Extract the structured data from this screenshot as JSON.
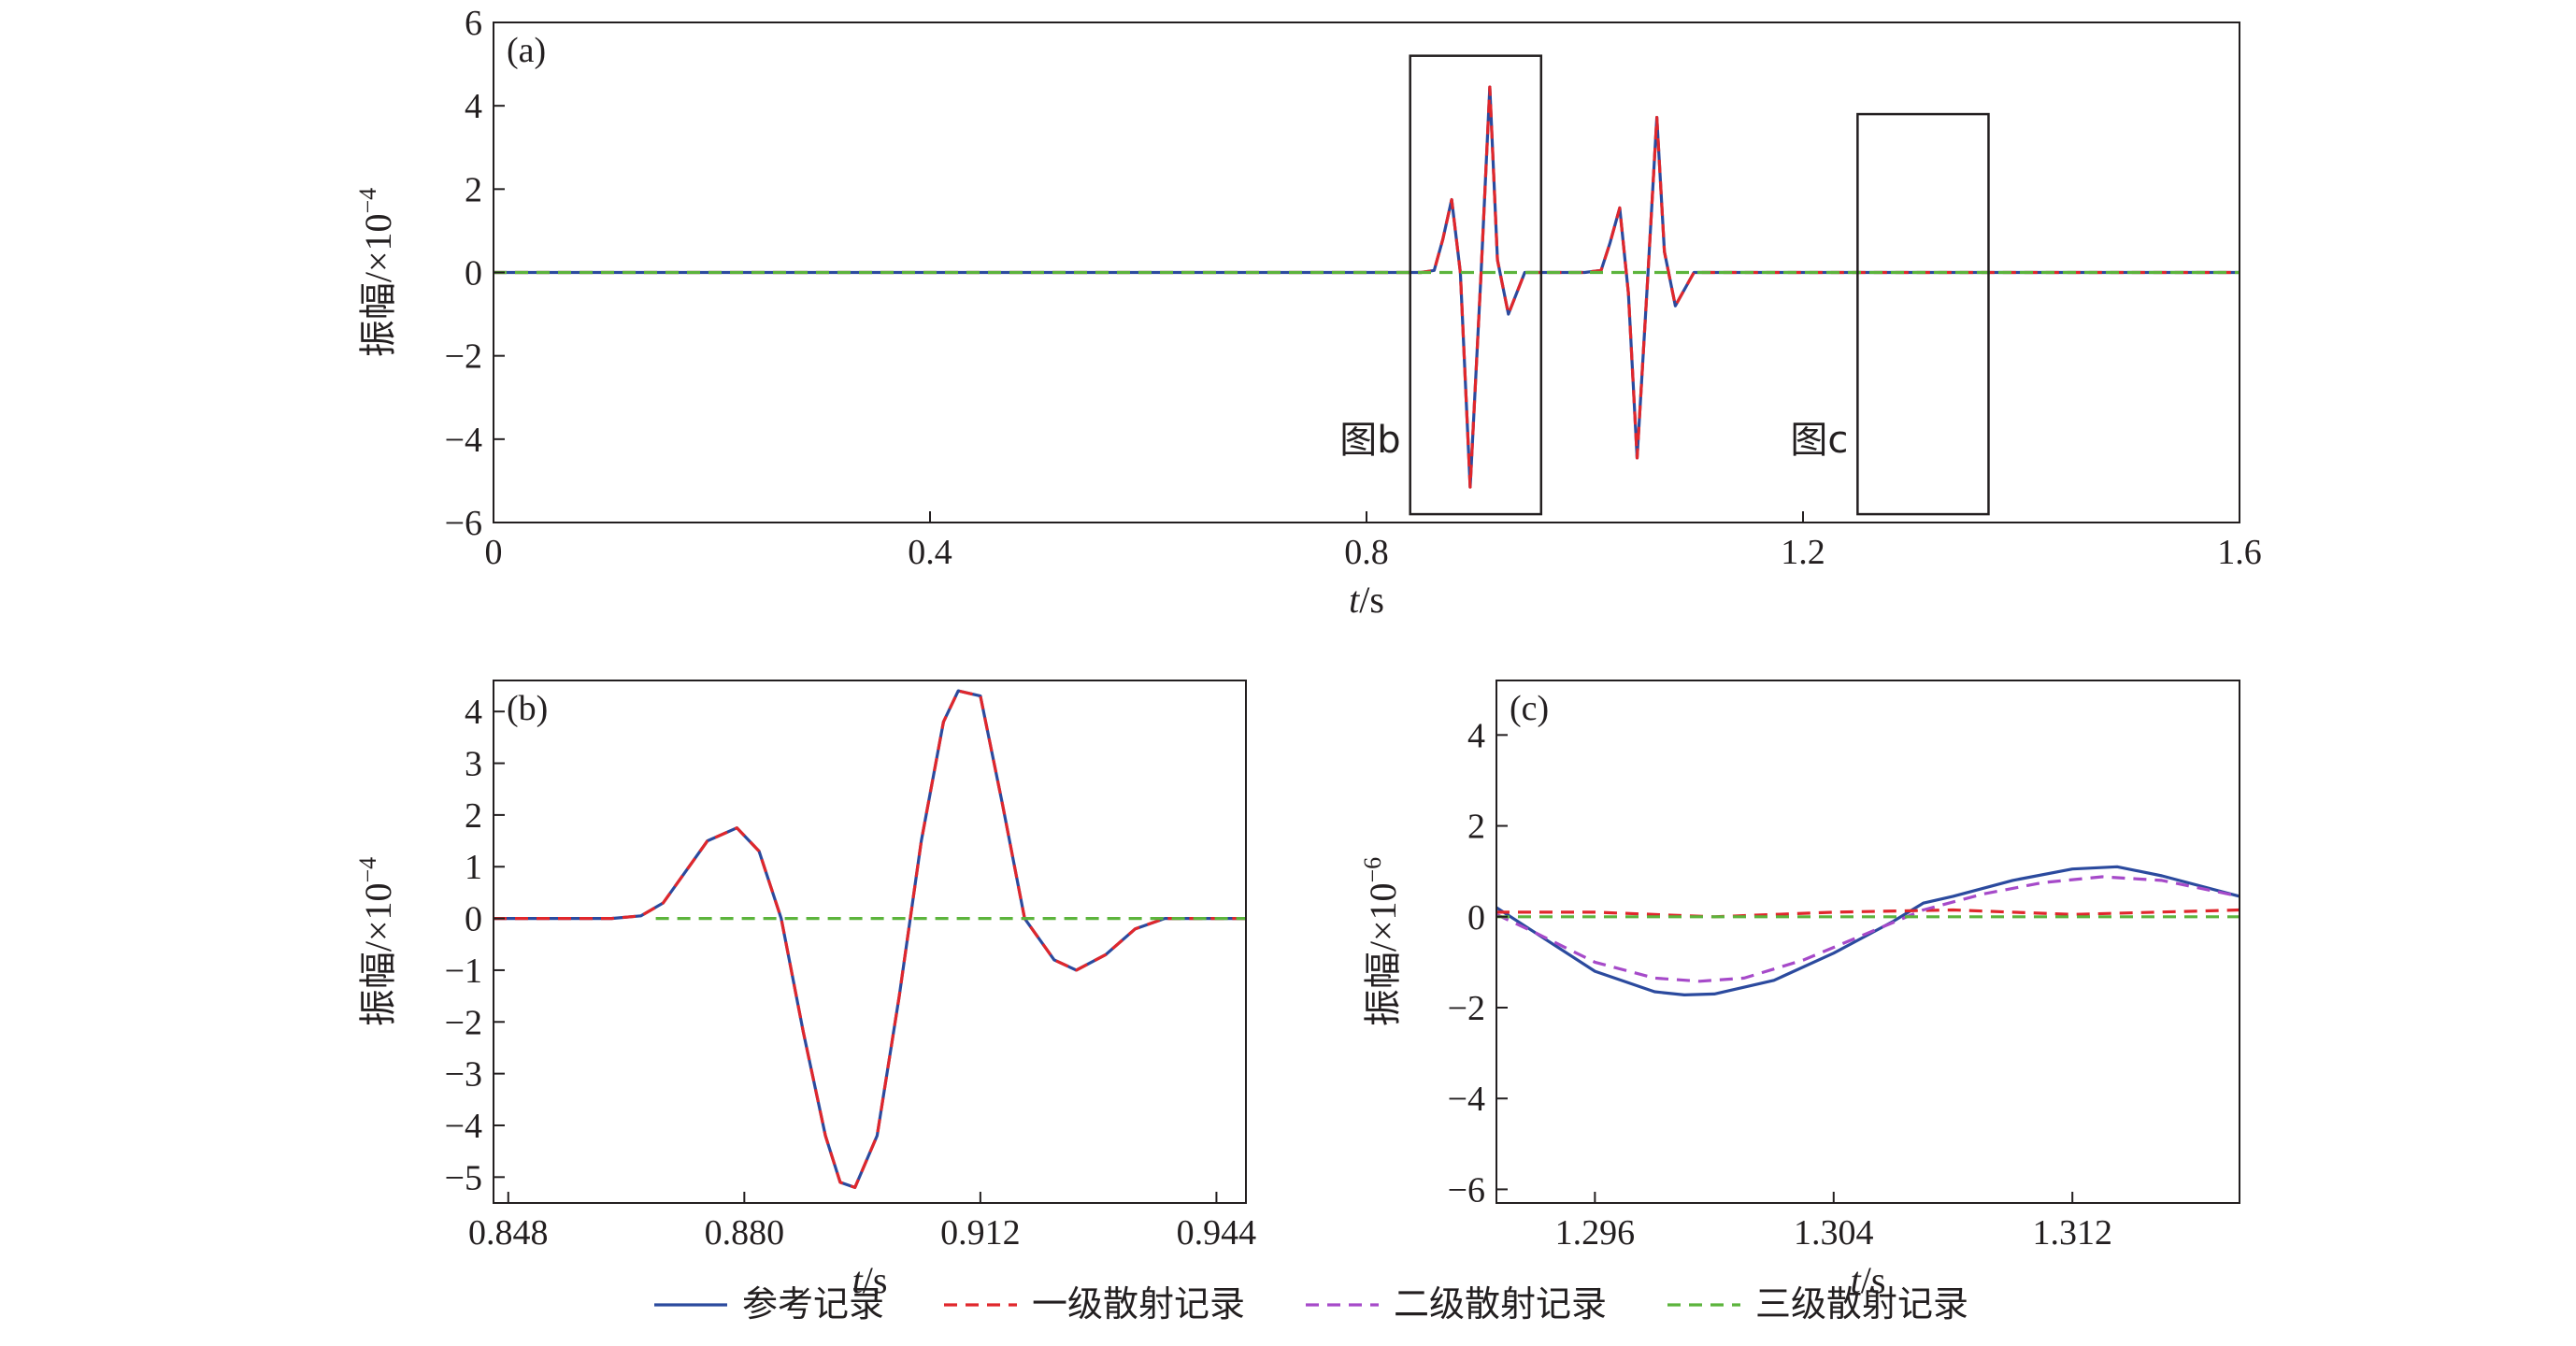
{
  "colors": {
    "reference": "#2b4a9e",
    "first_order": "#e0272c",
    "second_order": "#a64ac9",
    "third_order": "#5cb43c",
    "axis": "#231f20"
  },
  "legend": [
    {
      "label": "参考记录",
      "color": "#2b4a9e",
      "dash": "solid"
    },
    {
      "label": "一级散射记录",
      "color": "#e0272c",
      "dash": "dashed"
    },
    {
      "label": "二级散射记录",
      "color": "#a64ac9",
      "dash": "dashed"
    },
    {
      "label": "三级散射记录",
      "color": "#5cb43c",
      "dash": "dashed"
    }
  ],
  "chart_data": [
    {
      "panel": "(a)",
      "type": "line",
      "xlabel_italic": "t",
      "xlabel_unit": "/s",
      "ylabel": "振幅/×10",
      "ylabel_exp": "−4",
      "xlim": [
        0,
        1.6
      ],
      "ylim": [
        -6,
        6
      ],
      "xticks": [
        0,
        0.4,
        0.8,
        1.2,
        1.6
      ],
      "xtick_labels": [
        "0",
        "0.4",
        "0.8",
        "1.2",
        "1.6"
      ],
      "yticks": [
        -6,
        -4,
        -2,
        0,
        2,
        4,
        6
      ],
      "ytick_labels": [
        "−6",
        "−4",
        "−2",
        "0",
        "2",
        "4",
        "6"
      ],
      "grid": false,
      "series": [
        {
          "name": "参考记录",
          "x": [
            0,
            0.85,
            0.862,
            0.87,
            0.878,
            0.886,
            0.895,
            0.905,
            0.913,
            0.92,
            0.93,
            0.945,
            1.0,
            1.015,
            1.023,
            1.032,
            1.04,
            1.048,
            1.058,
            1.066,
            1.073,
            1.083,
            1.1,
            1.6
          ],
          "y": [
            0,
            0,
            0.05,
            0.8,
            1.75,
            0,
            -5.15,
            0,
            4.45,
            0.3,
            -1.0,
            0,
            0,
            0.05,
            0.7,
            1.55,
            -0.5,
            -4.45,
            0,
            3.72,
            0.5,
            -0.8,
            0,
            0
          ]
        },
        {
          "name": "一级散射记录",
          "x": [
            0,
            0.85,
            0.862,
            0.87,
            0.878,
            0.886,
            0.895,
            0.905,
            0.913,
            0.92,
            0.93,
            0.945,
            1.0,
            1.015,
            1.023,
            1.032,
            1.04,
            1.048,
            1.058,
            1.066,
            1.073,
            1.083,
            1.1,
            1.6
          ],
          "y": [
            0,
            0,
            0.05,
            0.8,
            1.75,
            0,
            -5.15,
            0,
            4.45,
            0.3,
            -1.0,
            0,
            0,
            0.05,
            0.7,
            1.55,
            -0.5,
            -4.45,
            0,
            3.72,
            0.5,
            -0.8,
            0,
            0
          ]
        },
        {
          "name": "三级散射记录",
          "x": [
            0,
            1.6
          ],
          "y": [
            0,
            0
          ]
        }
      ],
      "annotations": [
        {
          "label": "图b",
          "box_x": [
            0.84,
            0.96
          ],
          "box_y": [
            -5.8,
            5.2
          ]
        },
        {
          "label": "图c",
          "box_x": [
            1.25,
            1.37
          ],
          "box_y": [
            -5.8,
            3.8
          ]
        }
      ]
    },
    {
      "panel": "(b)",
      "type": "line",
      "xlabel_italic": "t",
      "xlabel_unit": "/s",
      "ylabel": "振幅/×10",
      "ylabel_exp": "−4",
      "xlim": [
        0.846,
        0.948
      ],
      "ylim": [
        -5.5,
        4.6
      ],
      "xticks": [
        0.848,
        0.88,
        0.912,
        0.944
      ],
      "xtick_labels": [
        "0.848",
        "0.880",
        "0.912",
        "0.944"
      ],
      "yticks": [
        -5,
        -4,
        -3,
        -2,
        -1,
        0,
        1,
        2,
        3,
        4
      ],
      "ytick_labels": [
        "−5",
        "−4",
        "−3",
        "−2",
        "−1",
        "0",
        "1",
        "2",
        "3",
        "4"
      ],
      "grid": false,
      "series": [
        {
          "name": "参考记录",
          "x": [
            0.846,
            0.862,
            0.866,
            0.869,
            0.872,
            0.875,
            0.879,
            0.882,
            0.885,
            0.888,
            0.891,
            0.893,
            0.895,
            0.898,
            0.901,
            0.904,
            0.907,
            0.909,
            0.912,
            0.915,
            0.918,
            0.922,
            0.925,
            0.929,
            0.933,
            0.937,
            0.948
          ],
          "y": [
            0,
            0,
            0.05,
            0.3,
            0.9,
            1.5,
            1.75,
            1.3,
            0,
            -2.2,
            -4.2,
            -5.1,
            -5.2,
            -4.2,
            -1.5,
            1.5,
            3.8,
            4.4,
            4.3,
            2.2,
            0,
            -0.8,
            -1.0,
            -0.7,
            -0.2,
            0,
            0
          ]
        },
        {
          "name": "一级散射记录",
          "x": [
            0.846,
            0.862,
            0.866,
            0.869,
            0.872,
            0.875,
            0.879,
            0.882,
            0.885,
            0.888,
            0.891,
            0.893,
            0.895,
            0.898,
            0.901,
            0.904,
            0.907,
            0.909,
            0.912,
            0.915,
            0.918,
            0.922,
            0.925,
            0.929,
            0.933,
            0.937,
            0.948
          ],
          "y": [
            0,
            0,
            0.05,
            0.3,
            0.9,
            1.5,
            1.75,
            1.3,
            0,
            -2.2,
            -4.2,
            -5.1,
            -5.2,
            -4.2,
            -1.5,
            1.5,
            3.8,
            4.4,
            4.3,
            2.2,
            0,
            -0.8,
            -1.0,
            -0.7,
            -0.2,
            0,
            0
          ]
        },
        {
          "name": "三级散射记录",
          "x": [
            0.868,
            0.948
          ],
          "y": [
            0,
            0
          ]
        }
      ]
    },
    {
      "panel": "(c)",
      "type": "line",
      "xlabel_italic": "t",
      "xlabel_unit": "/s",
      "ylabel": "振幅/×10",
      "ylabel_exp": "−6",
      "xlim": [
        1.2927,
        1.3176
      ],
      "ylim": [
        -6.3,
        5.2
      ],
      "xticks": [
        1.296,
        1.304,
        1.312
      ],
      "xtick_labels": [
        "1.296",
        "1.304",
        "1.312"
      ],
      "yticks": [
        -6,
        -4,
        -2,
        0,
        2,
        4
      ],
      "ytick_labels": [
        "−6",
        "−4",
        "−2",
        "0",
        "2",
        "4"
      ],
      "grid": false,
      "series": [
        {
          "name": "参考记录",
          "x": [
            1.2927,
            1.294,
            1.296,
            1.298,
            1.299,
            1.3,
            1.302,
            1.304,
            1.306,
            1.307,
            1.308,
            1.31,
            1.312,
            1.3135,
            1.315,
            1.3176
          ],
          "y": [
            0.2,
            -0.35,
            -1.2,
            -1.65,
            -1.72,
            -1.7,
            -1.4,
            -0.8,
            -0.1,
            0.3,
            0.45,
            0.8,
            1.05,
            1.1,
            0.9,
            0.45
          ]
        },
        {
          "name": "一级散射记录",
          "x": [
            1.2927,
            1.296,
            1.3,
            1.304,
            1.308,
            1.312,
            1.3176
          ],
          "y": [
            0.1,
            0.1,
            0.0,
            0.1,
            0.15,
            0.05,
            0.15
          ]
        },
        {
          "name": "二级散射记录",
          "x": [
            1.2927,
            1.294,
            1.296,
            1.298,
            1.2995,
            1.301,
            1.303,
            1.305,
            1.307,
            1.309,
            1.311,
            1.313,
            1.315,
            1.3176
          ],
          "y": [
            0.05,
            -0.35,
            -1.0,
            -1.35,
            -1.42,
            -1.35,
            -0.95,
            -0.4,
            0.15,
            0.5,
            0.75,
            0.88,
            0.8,
            0.45
          ]
        },
        {
          "name": "三级散射记录",
          "x": [
            1.2927,
            1.3176
          ],
          "y": [
            0,
            0
          ]
        }
      ]
    }
  ]
}
